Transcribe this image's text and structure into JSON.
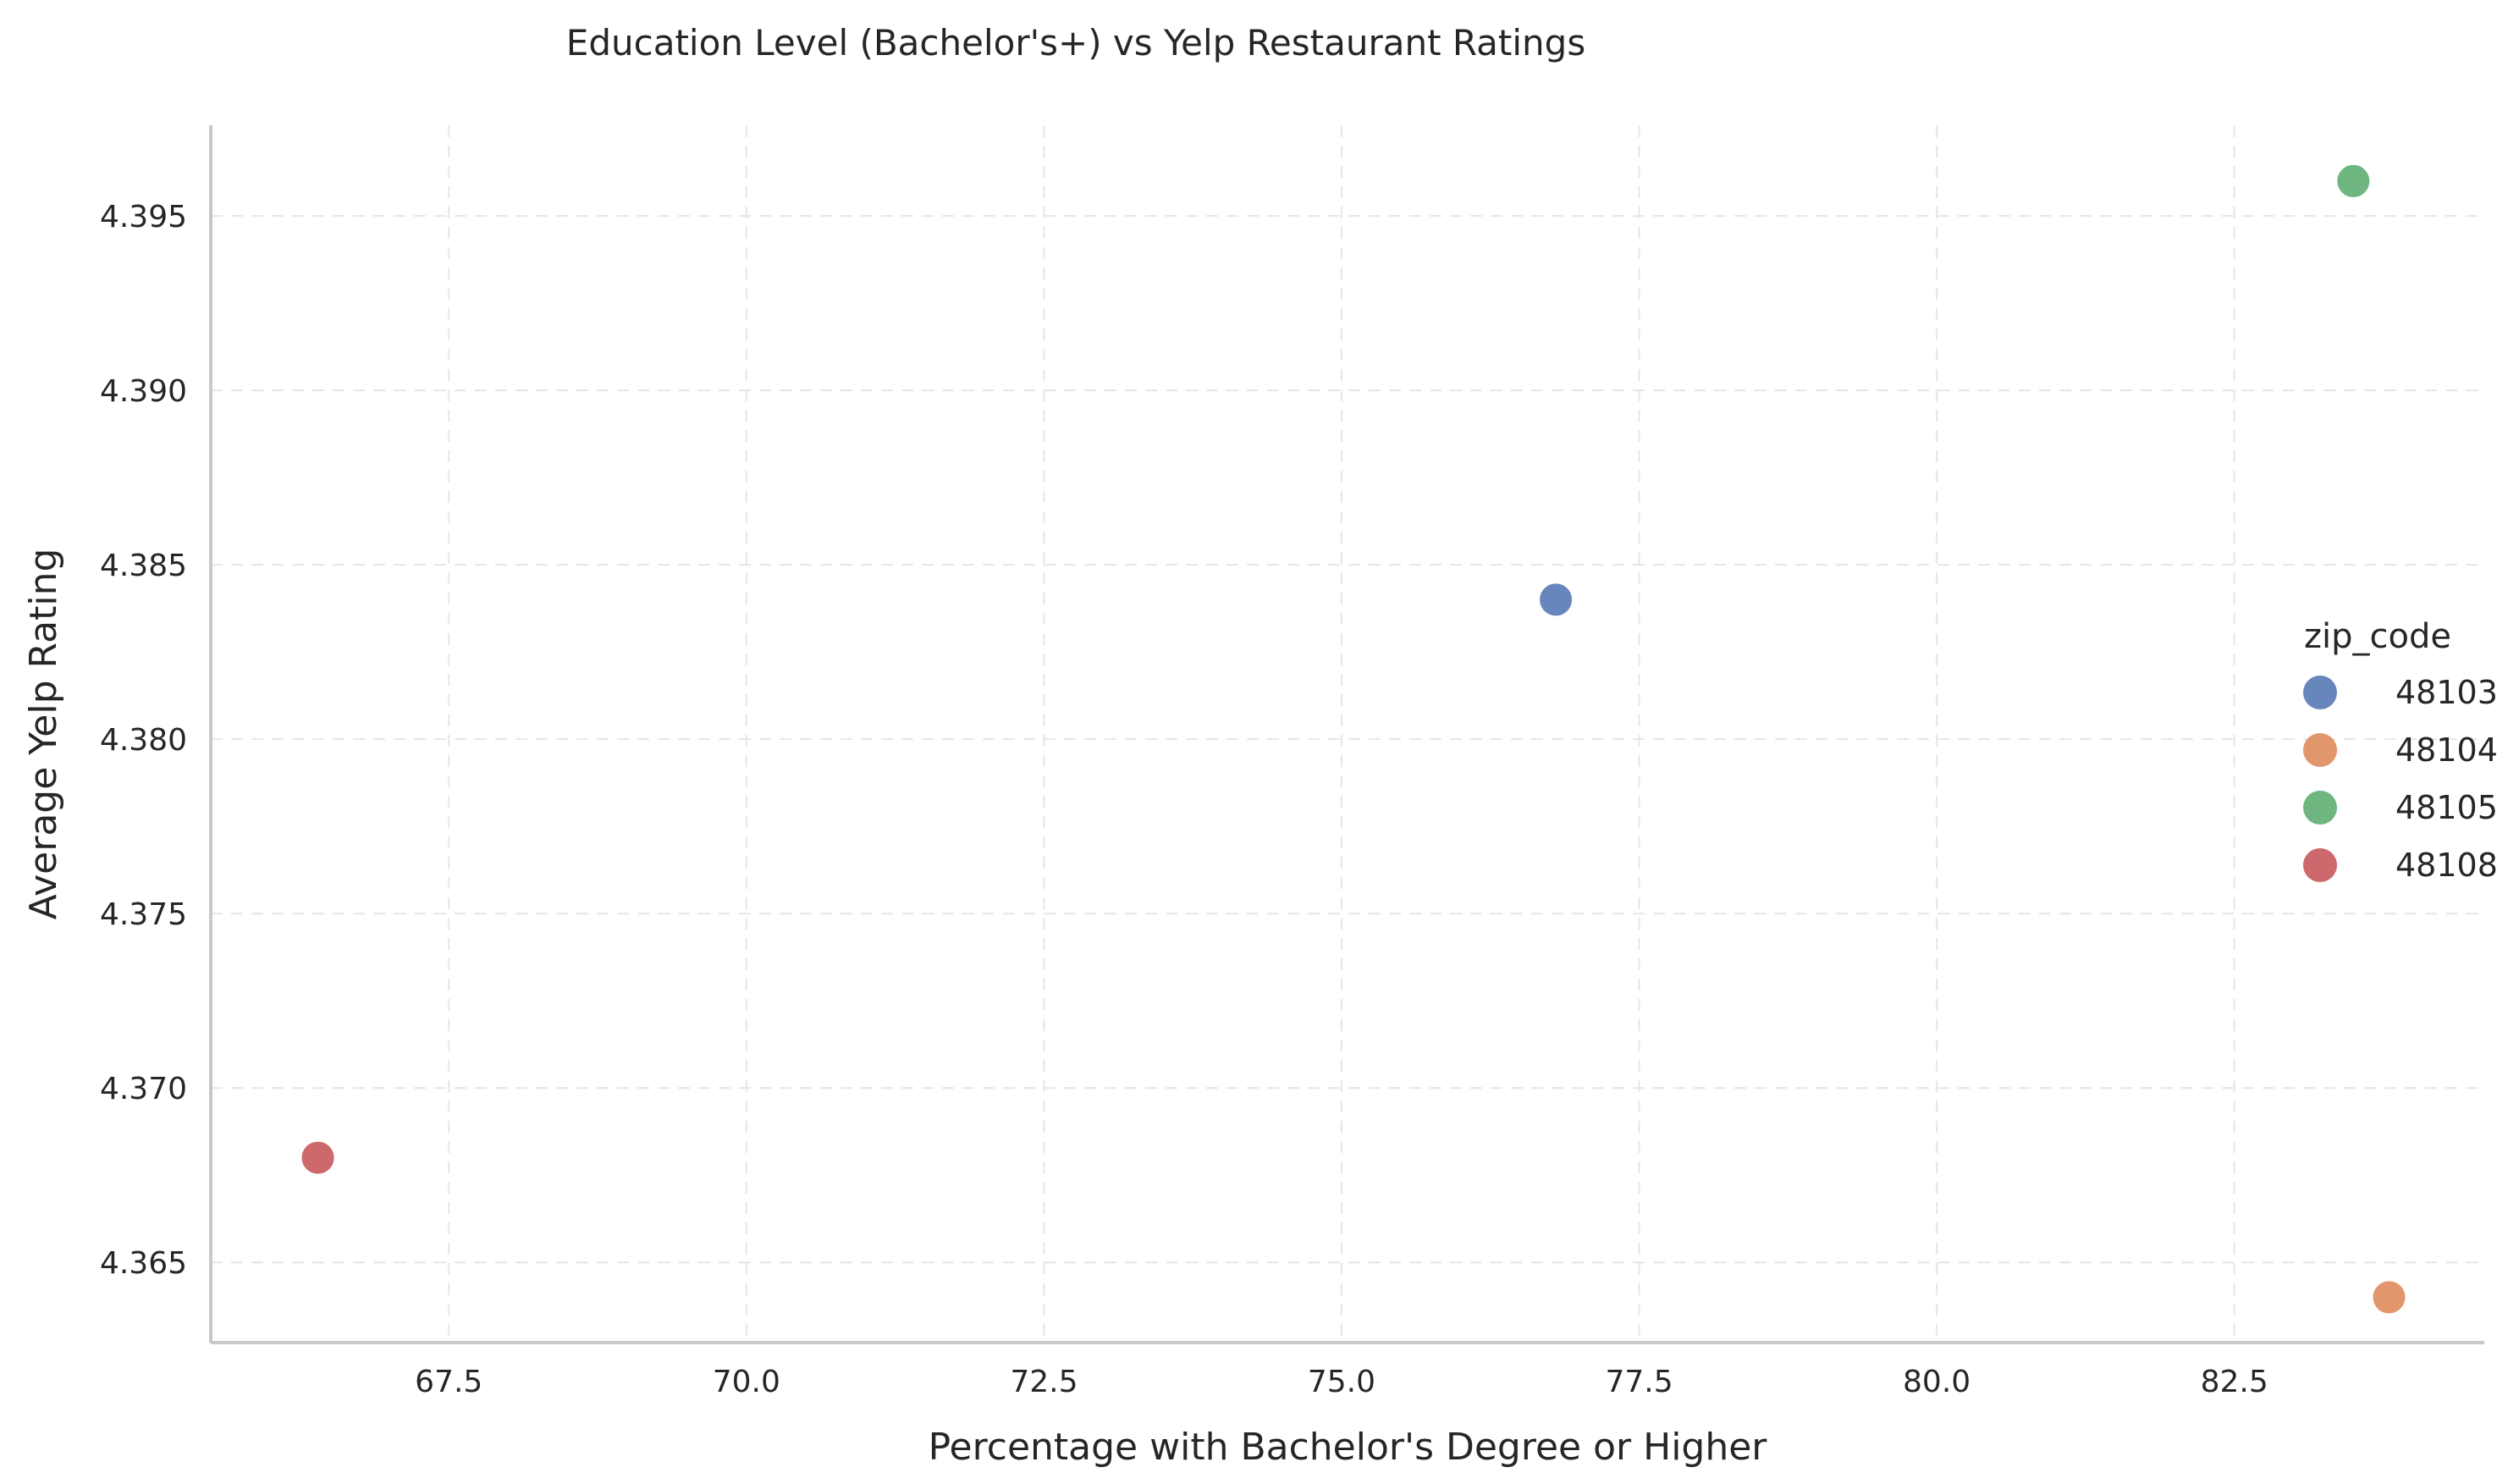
{
  "chart_data": {
    "type": "scatter",
    "title": "Education Level (Bachelor's+) vs Yelp Restaurant Ratings",
    "xlabel": "Percentage with Bachelor's Degree or Higher",
    "ylabel": "Average Yelp Rating",
    "xlim": [
      65.5,
      84.6
    ],
    "ylim": [
      4.3627,
      4.3976
    ],
    "xticks": [
      67.5,
      70.0,
      72.5,
      75.0,
      77.5,
      80.0,
      82.5
    ],
    "xtick_labels": [
      "67.5",
      "70.0",
      "72.5",
      "75.0",
      "77.5",
      "80.0",
      "82.5"
    ],
    "yticks": [
      4.365,
      4.37,
      4.375,
      4.38,
      4.385,
      4.39,
      4.395
    ],
    "ytick_labels": [
      "4.365",
      "4.370",
      "4.375",
      "4.380",
      "4.385",
      "4.390",
      "4.395"
    ],
    "grid": true,
    "legend": {
      "title": "zip_code",
      "placement": "right"
    },
    "series": [
      {
        "name": "48103",
        "color": "#4c72b0",
        "points": [
          {
            "x": 76.8,
            "y": 4.384
          }
        ]
      },
      {
        "name": "48104",
        "color": "#dd8452",
        "points": [
          {
            "x": 83.8,
            "y": 4.364
          }
        ]
      },
      {
        "name": "48105",
        "color": "#55a868",
        "points": [
          {
            "x": 83.5,
            "y": 4.396
          }
        ]
      },
      {
        "name": "48108",
        "color": "#c44e52",
        "points": [
          {
            "x": 66.4,
            "y": 4.368
          }
        ]
      }
    ]
  }
}
